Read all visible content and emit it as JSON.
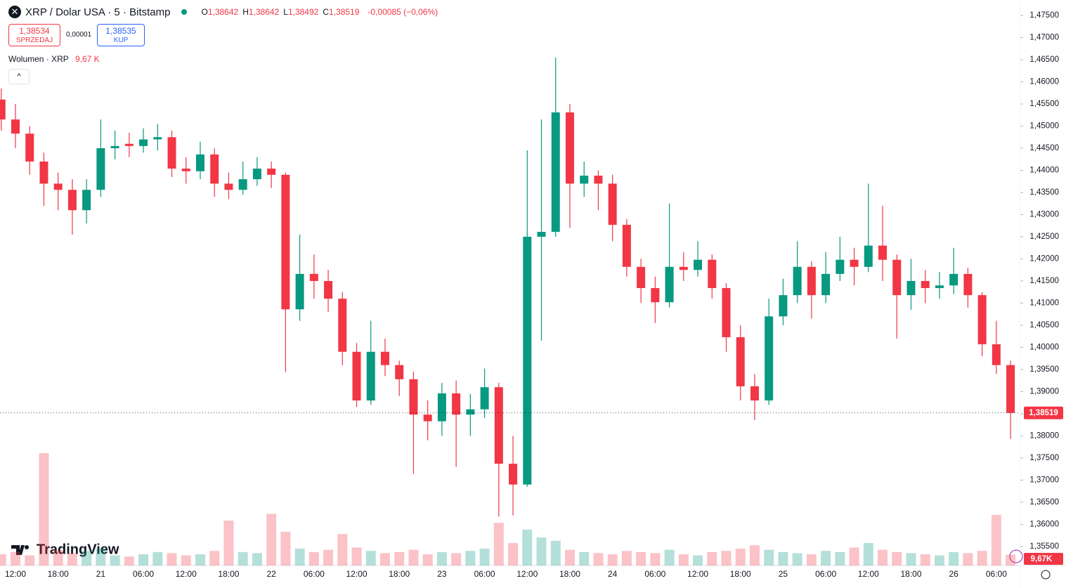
{
  "header": {
    "title": "XRP / Dolar USA · 5 · Bitstamp",
    "ohlc": [
      {
        "key": "O",
        "value": "1,38642"
      },
      {
        "key": "H",
        "value": "1,38642"
      },
      {
        "key": "L",
        "value": "1,38492"
      },
      {
        "key": "C",
        "value": "1,38519"
      }
    ],
    "change": "-0,00085 (−0,06%)",
    "sell": {
      "price": "1,38534",
      "label": "SPRZEDAJ"
    },
    "spread": "0,00001",
    "buy": {
      "price": "1,38535",
      "label": "KUP"
    },
    "volume_title": "Wolumen · XRP",
    "volume_value": "9,67 K"
  },
  "logo": "TradingView",
  "chart_data": {
    "type": "candlestick",
    "categories": [
      null,
      "12:00",
      null,
      null,
      "18:00",
      null,
      null,
      "21",
      null,
      null,
      "06:00",
      null,
      null,
      "12:00",
      null,
      null,
      "18:00",
      null,
      null,
      "22",
      null,
      null,
      "06:00",
      null,
      null,
      "12:00",
      null,
      null,
      "18:00",
      null,
      null,
      "23",
      null,
      null,
      "06:00",
      null,
      null,
      "12:00",
      null,
      null,
      "18:00",
      null,
      null,
      "24",
      null,
      null,
      "06:00",
      null,
      null,
      "12:00",
      null,
      null,
      "18:00",
      null,
      null,
      "25",
      null,
      null,
      "06:00",
      null,
      null,
      "12:00",
      null,
      null,
      "18:00",
      null,
      null,
      "26",
      null,
      null,
      "06:00",
      null
    ],
    "open": [
      1.456,
      1.4515,
      1.4483,
      1.442,
      1.437,
      1.4356,
      1.431,
      1.4356,
      1.445,
      1.446,
      1.4455,
      1.447,
      1.4475,
      1.4404,
      1.4398,
      1.4436,
      1.437,
      1.4356,
      1.438,
      1.4404,
      1.439,
      1.4086,
      1.4166,
      1.415,
      1.411,
      1.399,
      1.388,
      1.399,
      1.396,
      1.3928,
      1.3848,
      1.3833,
      1.3896,
      1.3848,
      1.386,
      1.391,
      1.3737,
      1.369,
      1.425,
      1.4261,
      1.4531,
      1.437,
      1.4388,
      1.437,
      1.4277,
      1.4182,
      1.4134,
      1.4102,
      1.4182,
      1.4175,
      1.4198,
      1.4134,
      1.4023,
      1.3912,
      1.388,
      1.407,
      1.4118,
      1.4182,
      1.4118,
      1.4166,
      1.4198,
      1.4182,
      1.423,
      1.4198,
      1.4118,
      1.415,
      1.4134,
      1.414,
      1.4166,
      1.4118,
      1.4007,
      1.396
    ],
    "high": [
      1.4585,
      1.455,
      1.45,
      1.444,
      1.4395,
      1.438,
      1.438,
      1.4515,
      1.449,
      1.4485,
      1.4495,
      1.4505,
      1.449,
      1.443,
      1.4465,
      1.445,
      1.4395,
      1.442,
      1.443,
      1.442,
      1.4395,
      1.4255,
      1.421,
      1.4175,
      1.4125,
      1.401,
      1.406,
      1.402,
      1.397,
      1.3945,
      1.388,
      1.392,
      1.3925,
      1.3895,
      1.3952,
      1.392,
      1.38,
      1.4445,
      1.4515,
      1.4655,
      1.455,
      1.442,
      1.44,
      1.439,
      1.429,
      1.42,
      1.416,
      1.4325,
      1.4215,
      1.424,
      1.421,
      1.4145,
      1.405,
      1.394,
      1.411,
      1.4155,
      1.424,
      1.4195,
      1.4215,
      1.425,
      1.4225,
      1.437,
      1.432,
      1.421,
      1.42,
      1.4175,
      1.417,
      1.4225,
      1.418,
      1.4125,
      1.406,
      1.397
    ],
    "low": [
      1.449,
      1.445,
      1.439,
      1.432,
      1.431,
      1.4255,
      1.428,
      1.434,
      1.4425,
      1.443,
      1.444,
      1.4445,
      1.4385,
      1.437,
      1.438,
      1.434,
      1.4335,
      1.4345,
      1.4365,
      1.436,
      1.3944,
      1.406,
      1.411,
      1.408,
      1.396,
      1.3865,
      1.387,
      1.3935,
      1.389,
      1.3714,
      1.379,
      1.38,
      1.373,
      1.38,
      1.384,
      1.3618,
      1.362,
      1.3685,
      1.4015,
      1.425,
      1.427,
      1.434,
      1.431,
      1.424,
      1.416,
      1.41,
      1.4055,
      1.409,
      1.415,
      1.416,
      1.411,
      1.399,
      1.388,
      1.3836,
      1.387,
      1.405,
      1.41,
      1.4065,
      1.41,
      1.415,
      1.414,
      1.417,
      1.415,
      1.402,
      1.4085,
      1.41,
      1.411,
      1.412,
      1.409,
      1.398,
      1.394,
      1.3793
    ],
    "close": [
      1.4515,
      1.4483,
      1.442,
      1.437,
      1.4356,
      1.431,
      1.4356,
      1.445,
      1.4455,
      1.4455,
      1.447,
      1.4475,
      1.4404,
      1.4398,
      1.4436,
      1.437,
      1.4356,
      1.438,
      1.4404,
      1.439,
      1.4086,
      1.4166,
      1.415,
      1.411,
      1.399,
      1.388,
      1.399,
      1.396,
      1.3928,
      1.3848,
      1.3833,
      1.3896,
      1.3848,
      1.386,
      1.391,
      1.3737,
      1.369,
      1.425,
      1.4261,
      1.4531,
      1.437,
      1.4388,
      1.437,
      1.4277,
      1.4182,
      1.4134,
      1.4102,
      1.4182,
      1.4175,
      1.4198,
      1.4134,
      1.4023,
      1.3912,
      1.388,
      1.407,
      1.4118,
      1.4182,
      1.4118,
      1.4166,
      1.4198,
      1.4182,
      1.423,
      1.4198,
      1.4118,
      1.415,
      1.4134,
      1.414,
      1.4166,
      1.4118,
      1.4007,
      1.396,
      1.3852
    ],
    "volume": [
      10,
      12,
      9,
      100,
      14,
      11,
      13,
      15,
      9,
      8,
      10,
      12,
      11,
      9,
      10,
      13,
      40,
      12,
      11,
      46,
      30,
      15,
      12,
      14,
      28,
      16,
      13,
      11,
      12,
      14,
      10,
      12,
      11,
      13,
      15,
      38,
      20,
      32,
      25,
      22,
      14,
      12,
      11,
      10,
      13,
      12,
      11,
      14,
      10,
      9,
      12,
      13,
      15,
      18,
      14,
      12,
      11,
      10,
      13,
      12,
      16,
      20,
      14,
      12,
      11,
      10,
      9,
      12,
      11,
      13,
      45,
      9.67
    ],
    "volume_label": "9,67K",
    "up_color": "#089981",
    "down_color": "#f23645",
    "ylim": [
      1.3507,
      1.4785
    ],
    "yticks": [
      {
        "value": 1.355,
        "label": "1,35500"
      },
      {
        "value": 1.36,
        "label": "1,36000"
      },
      {
        "value": 1.365,
        "label": "1,36500"
      },
      {
        "value": 1.37,
        "label": "1,37000"
      },
      {
        "value": 1.375,
        "label": "1,37500"
      },
      {
        "value": 1.38,
        "label": "1,38000"
      },
      {
        "value": 1.385,
        "label": "1,38500"
      },
      {
        "value": 1.39,
        "label": "1,39000"
      },
      {
        "value": 1.395,
        "label": "1,39500"
      },
      {
        "value": 1.4,
        "label": "1,40000"
      },
      {
        "value": 1.405,
        "label": "1,40500"
      },
      {
        "value": 1.41,
        "label": "1,41000"
      },
      {
        "value": 1.415,
        "label": "1,41500"
      },
      {
        "value": 1.42,
        "label": "1,42000"
      },
      {
        "value": 1.425,
        "label": "1,42500"
      },
      {
        "value": 1.43,
        "label": "1,43000"
      },
      {
        "value": 1.435,
        "label": "1,43500"
      },
      {
        "value": 1.44,
        "label": "1,44000"
      },
      {
        "value": 1.445,
        "label": "1,44500"
      },
      {
        "value": 1.45,
        "label": "1,45000"
      },
      {
        "value": 1.455,
        "label": "1,45500"
      },
      {
        "value": 1.46,
        "label": "1,46000"
      },
      {
        "value": 1.465,
        "label": "1,46500"
      },
      {
        "value": 1.47,
        "label": "1,47000"
      },
      {
        "value": 1.475,
        "label": "1,47500"
      }
    ],
    "last_price": {
      "value": 1.38519,
      "label": "1,38519"
    }
  }
}
